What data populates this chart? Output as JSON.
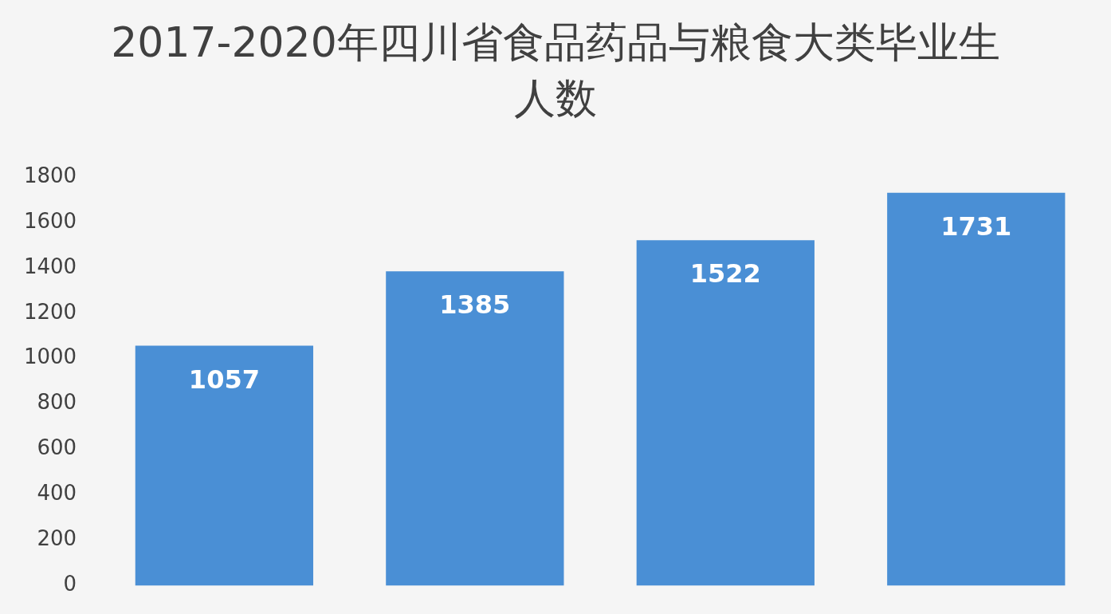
{
  "chart_data": {
    "type": "bar",
    "title": "2017-2020年四川省食品药品与粮食大类毕业生人数",
    "categories": [
      null,
      null,
      null,
      null
    ],
    "values": [
      1057,
      1385,
      1522,
      1731
    ],
    "color": "#4a8fd5",
    "ylim": [
      0,
      1800
    ],
    "yticks": [
      0,
      200,
      400,
      600,
      800,
      1000,
      1200,
      1400,
      1600,
      1800
    ],
    "grid": false,
    "data_labels": true,
    "legend": false
  }
}
